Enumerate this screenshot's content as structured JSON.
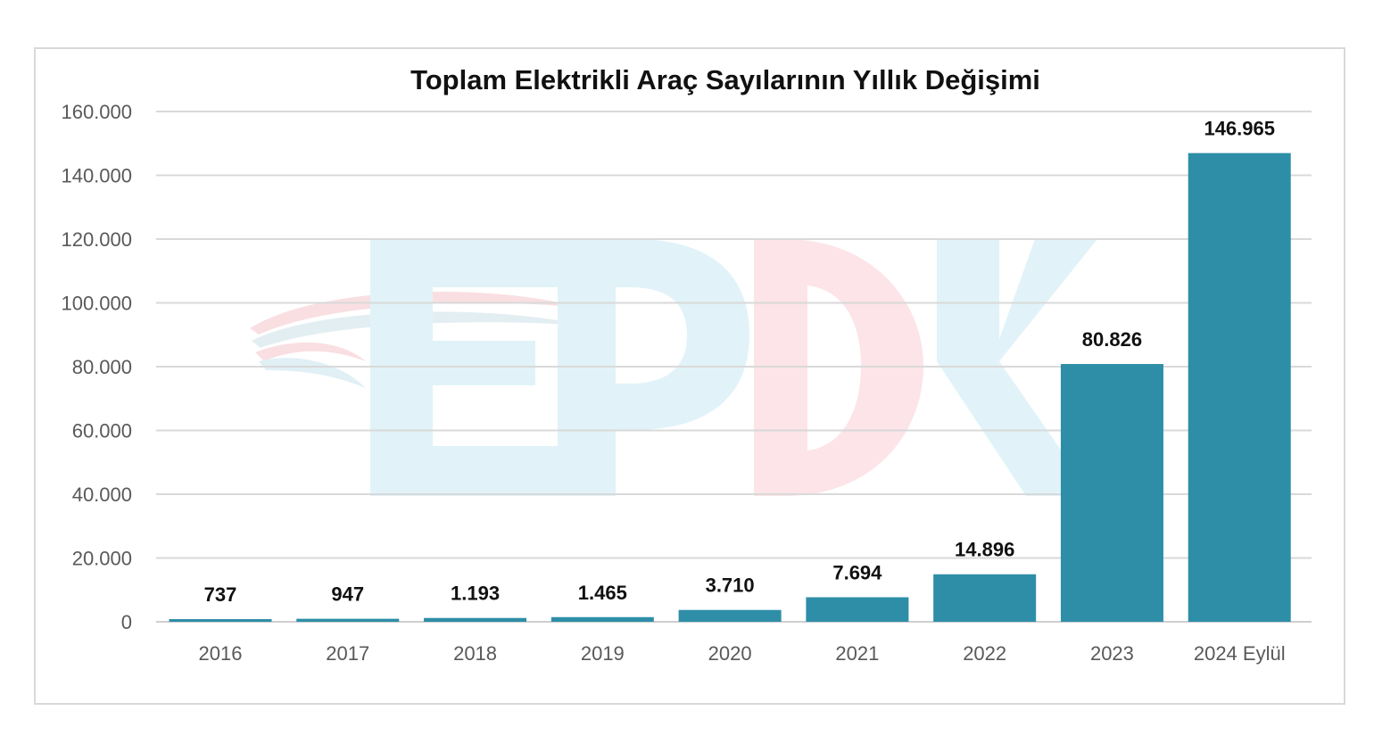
{
  "chart_data": {
    "type": "bar",
    "title": "Toplam Elektrikli Araç Sayılarının Yıllık Değişimi",
    "categories": [
      "2016",
      "2017",
      "2018",
      "2019",
      "2020",
      "2021",
      "2022",
      "2023",
      "2024 Eylül"
    ],
    "values": [
      737,
      947,
      1193,
      1465,
      3710,
      7694,
      14896,
      80826,
      146965
    ],
    "data_labels": [
      "737",
      "947",
      "1.193",
      "1.465",
      "3.710",
      "7.694",
      "14.896",
      "80.826",
      "146.965"
    ],
    "y_ticks": [
      "0",
      "20.000",
      "40.000",
      "60.000",
      "80.000",
      "100.000",
      "120.000",
      "140.000",
      "160.000"
    ],
    "ylim": [
      0,
      160000
    ],
    "grid": true,
    "bar_color": "#2e8ea7",
    "watermark": "EPDK logo"
  }
}
